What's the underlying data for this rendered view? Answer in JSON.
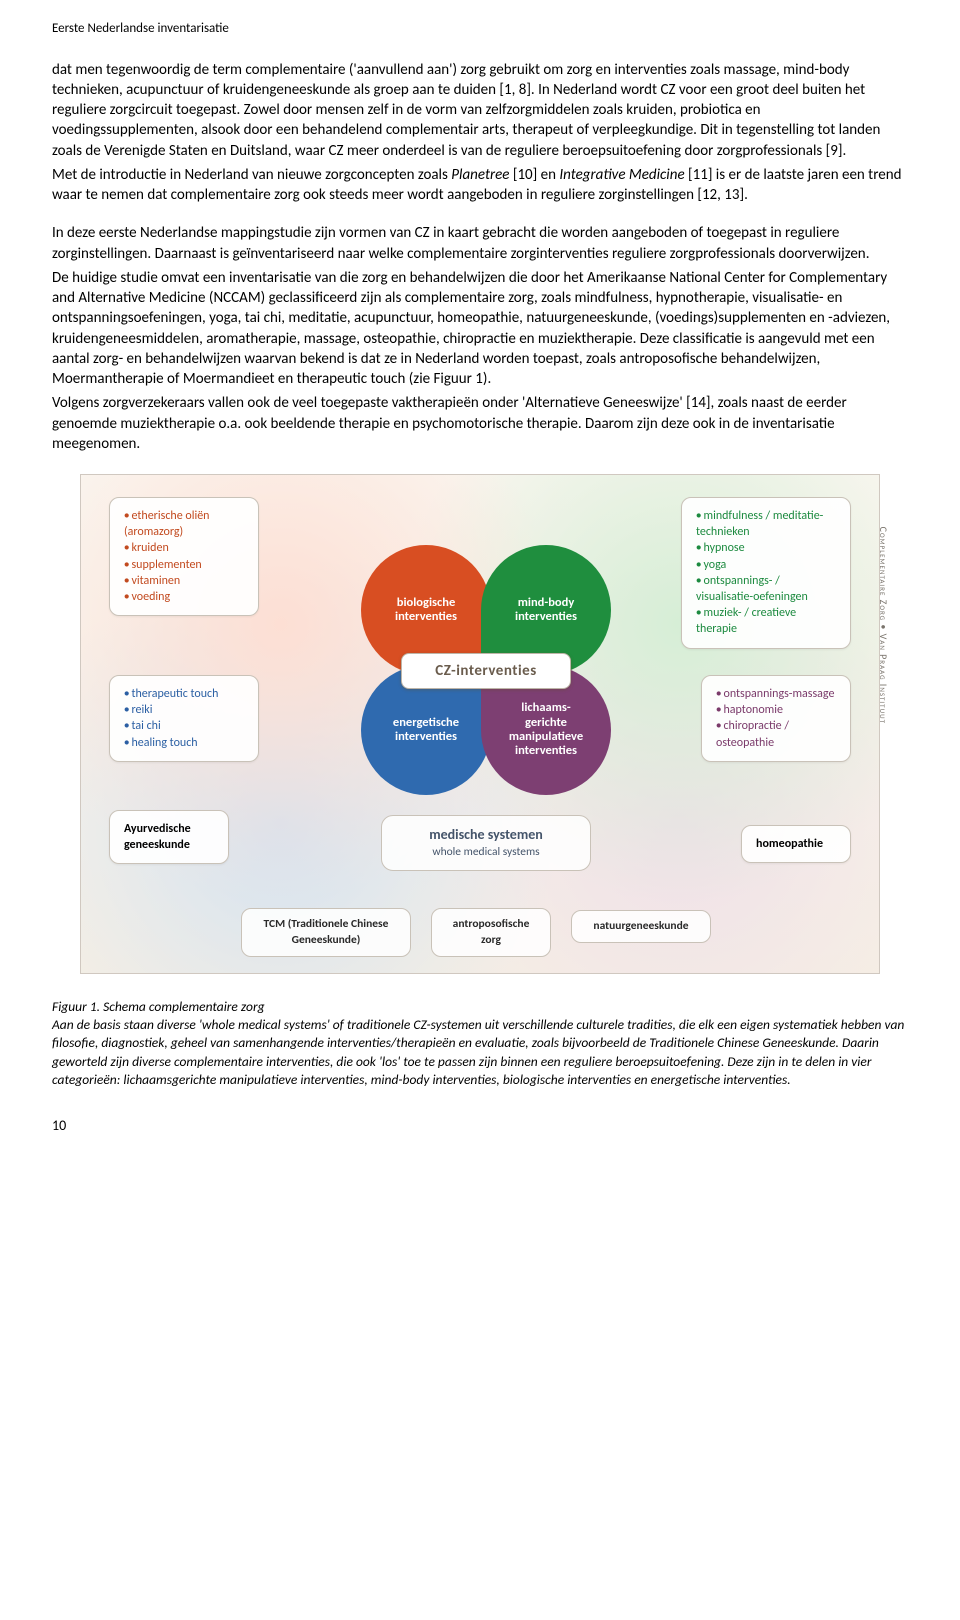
{
  "header": "Eerste Nederlandse inventarisatie",
  "paragraphs": {
    "p1": "dat men tegenwoordig de term complementaire ('aanvullend aan') zorg gebruikt om zorg en interventies zoals massage, mind-body technieken, acupunctuur of kruidengeneeskunde als groep aan te duiden [1, 8]. In Nederland wordt CZ voor een groot deel buiten het reguliere zorgcircuit toegepast. Zowel door mensen zelf in de vorm van zelfzorgmiddelen zoals kruiden, probiotica en voedingssupplementen, alsook door een behandelend complementair arts, therapeut of verpleegkundige. Dit in tegenstelling tot landen zoals de Verenigde Staten en Duitsland, waar CZ meer onderdeel is van de reguliere beroepsuitoefening door zorgprofessionals [9].",
    "p2a": "Met de introductie in Nederland van nieuwe zorgconcepten zoals ",
    "p2i1": "Planetree",
    "p2b": " [10] en ",
    "p2i2": "Integrative Medicine",
    "p2c": " [11] is er de laatste jaren een trend waar te nemen dat complementaire zorg ook steeds meer wordt aangeboden in reguliere zorginstellingen [12, 13].",
    "p3": "In deze eerste Nederlandse mappingstudie zijn vormen van CZ in kaart gebracht die worden aangeboden of toegepast in reguliere zorginstellingen. Daarnaast is geïnventariseerd naar welke complementaire zorginterventies reguliere zorgprofessionals doorverwijzen.",
    "p4": "De huidige studie omvat een inventarisatie van die zorg en behandelwijzen die door het Amerikaanse National Center for Complementary and Alternative Medicine (NCCAM) geclassificeerd zijn als complementaire zorg, zoals mindfulness, hypnotherapie, visualisatie- en ontspanningsoefeningen, yoga, tai chi, meditatie, acupunctuur, homeopathie, natuurgeneeskunde, (voedings)supplementen en -adviezen, kruidengeneesmiddelen, aromatherapie, massage, osteopathie, chiropractie en muziektherapie. Deze classificatie is aangevuld met een aantal zorg- en behandelwijzen waarvan bekend is dat ze in Nederland worden toepast, zoals antroposofische behandelwijzen, Moermantherapie of Moermandieet en therapeutic touch (zie Figuur 1).",
    "p5": "Volgens zorgverzekeraars vallen ook de veel toegepaste vaktherapieën onder 'Alternatieve Geneeswijze' [14], zoals naast de eerder genoemde muziektherapie o.a. ook beeldende therapie en psychomotorische therapie. Daarom zijn deze ook in de inventarisatie meegenomen."
  },
  "diagram": {
    "side_label": "Complementaire Zorg • Van Praag Instituut",
    "center": "CZ-interventies",
    "petals": {
      "bio": "biologische interventies",
      "mind": "mind-body interventies",
      "ener": "energetische interventies",
      "manip": "lichaams-\ngerichte manipulatieve interventies"
    },
    "callouts": {
      "tl": [
        "etherische oliën (aromazorg)",
        "kruiden",
        "supplementen",
        "vitaminen",
        "voeding"
      ],
      "tr": [
        "mindfulness / meditatie-technieken",
        "hypnose",
        "yoga",
        "ontspannings- / visualisatie-oefeningen",
        "muziek- / creatieve therapie"
      ],
      "ml": [
        "therapeutic touch",
        "reiki",
        "tai chi",
        "healing touch"
      ],
      "mr": [
        "ontspannings-massage",
        "haptonomie",
        "chiropractie / osteopathie"
      ],
      "bl": "Ayurvedische geneeskunde",
      "br": "homeopathie"
    },
    "med_sys": {
      "t1": "medische systemen",
      "t2": "whole medical systems"
    },
    "bottom": {
      "tcm": "TCM\n(Traditionele Chinese Geneeskunde)",
      "antro": "antroposofische zorg",
      "natuur": "natuurgeneeskunde"
    },
    "colors": {
      "bio": "#d84e22",
      "mind": "#1f8e3e",
      "ener": "#2f6aaf",
      "manip": "#7d3f72",
      "border": "#c9c2b8",
      "bg": "#faf6f0"
    }
  },
  "caption": {
    "title": "Figuur 1. Schema complementaire zorg",
    "body": "Aan de basis staan diverse 'whole medical systems' of traditionele CZ-systemen uit verschillende culturele tradities, die elk een eigen systematiek hebben van filosofie, diagnostiek, geheel van samenhangende interventies/therapieën en evaluatie, zoals bijvoorbeeld de Traditionele Chinese Geneeskunde. Daarin geworteld zijn diverse complementaire interventies, die ook 'los' toe te passen zijn binnen een reguliere beroepsuitoefening. Deze zijn in te delen in vier categorieën: lichaamsgerichte manipulatieve interventies, mind-body interventies, biologische interventies en energetische interventies."
  },
  "page_number": "10"
}
